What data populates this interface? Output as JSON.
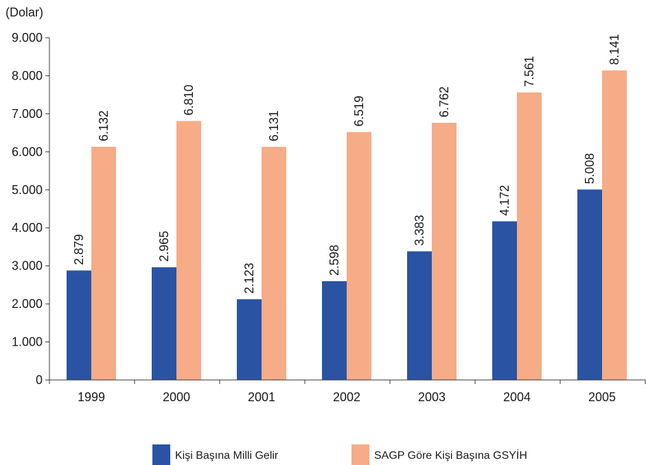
{
  "chart_data": {
    "type": "bar",
    "title": "",
    "ylabel": "(Dolar)",
    "xlabel": "",
    "ylim": [
      0,
      9000
    ],
    "yticks": [
      0,
      1000,
      2000,
      3000,
      4000,
      5000,
      6000,
      7000,
      8000,
      9000
    ],
    "ytick_labels": [
      "0",
      "1.000",
      "2.000",
      "3.000",
      "4.000",
      "5.000",
      "6.000",
      "7.000",
      "8.000",
      "9.000"
    ],
    "grid": false,
    "legend_position": "bottom",
    "categories": [
      "1999",
      "2000",
      "2001",
      "2002",
      "2003",
      "2004",
      "2005"
    ],
    "series": [
      {
        "name": "Kişi Başına Milli Gelir",
        "color": "#2a54a3",
        "values": [
          2879,
          2965,
          2123,
          2598,
          3383,
          4172,
          5008
        ],
        "labels": [
          "2.879",
          "2.965",
          "2.123",
          "2.598",
          "3.383",
          "4.172",
          "5.008"
        ]
      },
      {
        "name": "SAGP Göre Kişi Başına GSYİH",
        "color": "#f6ac86",
        "values": [
          6132,
          6810,
          6131,
          6519,
          6762,
          7561,
          8141
        ],
        "labels": [
          "6.132",
          "6.810",
          "6.131",
          "6.519",
          "6.762",
          "7.561",
          "8.141"
        ]
      }
    ]
  }
}
